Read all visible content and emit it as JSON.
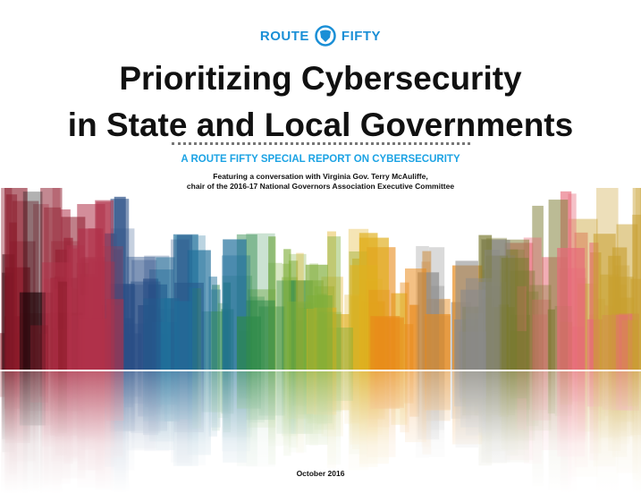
{
  "logo": {
    "left": "ROUTE",
    "right": "FIFTY",
    "icon": "shield-icon",
    "color": "#1a8fd6"
  },
  "title": {
    "line1": "Prioritizing Cybersecurity",
    "line2": "in State and Local Governments"
  },
  "subtitle": "A ROUTE FIFTY SPECIAL REPORT ON CYBERSECURITY",
  "featuring": {
    "line1": "Featuring a conversation with Virginia Gov. Terry McAuliffe,",
    "line2": "chair of the 2016-17 National Governors Association Executive Committee"
  },
  "date": "October 2016",
  "skyline_colors": [
    "#8b1a2a",
    "#b0324a",
    "#2a4f86",
    "#1f6f9a",
    "#2f8a4a",
    "#7fae3a",
    "#e0b020",
    "#e88a1a",
    "#8a8a8a",
    "#7a7a30",
    "#e86a7a",
    "#c8a030"
  ]
}
